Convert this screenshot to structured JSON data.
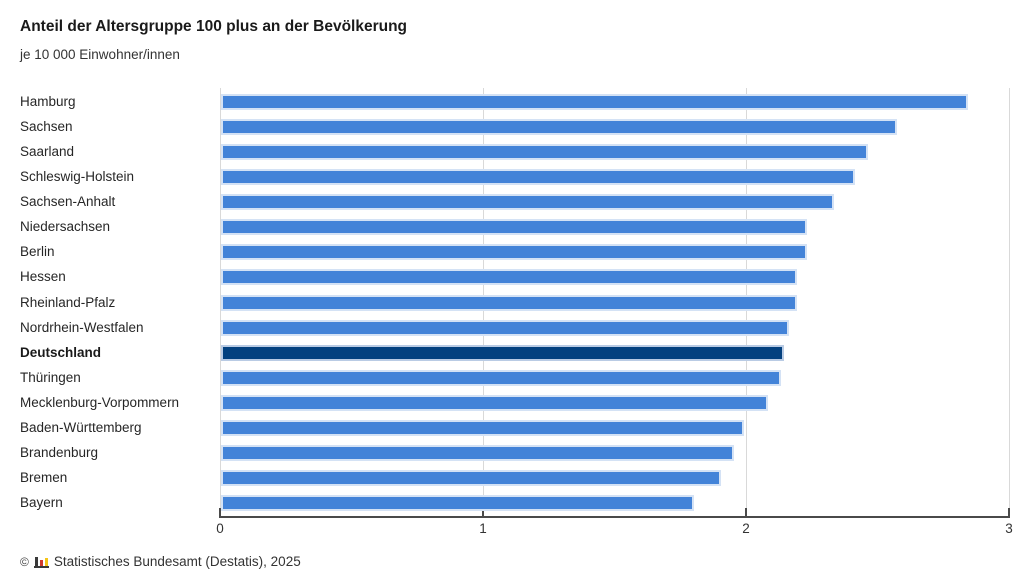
{
  "header": {
    "title": "Anteil der Altersgruppe 100 plus an der Bevölkerung",
    "subtitle": "je 10 000 Einwohner/innen"
  },
  "footer": {
    "copyright_symbol": "©",
    "logo_icon": "destatis-bar-chart-icon",
    "source": "Statistisches Bundesamt (Destatis), 2025"
  },
  "colors": {
    "bar": "#4383d8",
    "bar_halo": "#d4e2f5",
    "highlight_bar": "#04417f",
    "grid": "#d9d9d9",
    "axis": "#4a4a4a",
    "text": "#262626"
  },
  "chart_data": {
    "type": "bar",
    "orientation": "horizontal",
    "title": "Anteil der Altersgruppe 100 plus an der Bevölkerung",
    "subtitle": "je 10 000 Einwohner/innen",
    "categories": [
      "Hamburg",
      "Sachsen",
      "Saarland",
      "Schleswig-Holstein",
      "Sachsen-Anhalt",
      "Niedersachsen",
      "Berlin",
      "Hessen",
      "Rheinland-Pfalz",
      "Nordrhein-Westfalen",
      "Deutschland",
      "Thüringen",
      "Mecklenburg-Vorpommern",
      "Baden-Württemberg",
      "Brandenburg",
      "Bremen",
      "Bayern"
    ],
    "values": [
      2.84,
      2.57,
      2.46,
      2.41,
      2.33,
      2.23,
      2.23,
      2.19,
      2.19,
      2.16,
      2.14,
      2.13,
      2.08,
      1.99,
      1.95,
      1.9,
      1.8
    ],
    "highlight_category": "Deutschland",
    "xlabel": "",
    "ylabel": "",
    "xlim": [
      0,
      3
    ],
    "x_ticks": [
      0,
      1,
      2,
      3
    ],
    "grid": true,
    "legend": false
  }
}
